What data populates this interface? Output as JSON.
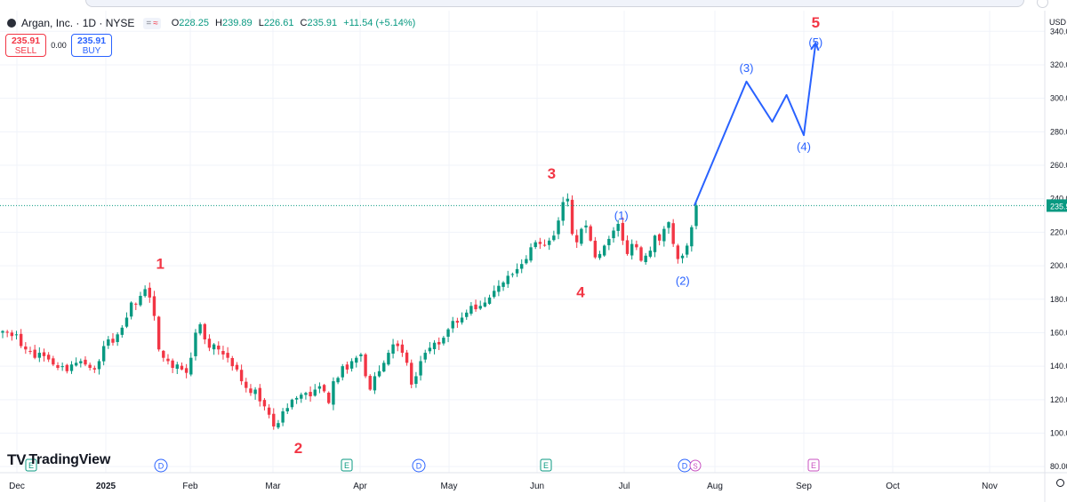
{
  "header": {
    "title": "Argan, Inc. · 1D · NYSE",
    "ohlc": [
      {
        "k": "O",
        "v": "228.25"
      },
      {
        "k": "H",
        "v": "239.89"
      },
      {
        "k": "L",
        "v": "226.61"
      },
      {
        "k": "C",
        "v": "235.91"
      },
      {
        "k": "",
        "v": "+11.54 (+5.14%)"
      }
    ],
    "toggle_icons": [
      "equals-icon",
      "wave-icon"
    ]
  },
  "trade": {
    "sell_price": "235.91",
    "sell_label": "SELL",
    "spread": "0.00",
    "buy_price": "235.91",
    "buy_label": "BUY"
  },
  "brand": "TradingView",
  "price_axis": {
    "unit": "USD",
    "ticks": [
      "340.00",
      "320.00",
      "300.00",
      "280.00",
      "260.00",
      "240.00",
      "220.00",
      "200.00",
      "180.00",
      "160.00",
      "140.00",
      "120.00",
      "100.00",
      "80.00"
    ],
    "last_price_label": "235.91"
  },
  "colors": {
    "up": "#089981",
    "down": "#f23645",
    "projection": "#2962ff",
    "wave_major": "#f23645",
    "last_line": "#089981"
  },
  "chart_data": {
    "type": "candlestick",
    "symbol": "Argan, Inc.",
    "interval": "1D",
    "exchange": "NYSE",
    "x_labels": [
      "Dec",
      "2025",
      "Feb",
      "Mar",
      "Apr",
      "May",
      "Jun",
      "Jul",
      "Aug",
      "Sep",
      "Oct",
      "Nov"
    ],
    "ylim": [
      75,
      345
    ],
    "y_ticks": [
      80,
      100,
      120,
      140,
      160,
      180,
      200,
      220,
      240,
      260,
      280,
      300,
      320,
      340
    ],
    "last_price": 235.91,
    "closes": [
      161,
      160,
      158,
      159,
      152,
      150,
      149,
      145,
      148,
      146,
      144,
      141,
      139,
      140,
      137,
      141,
      142,
      143,
      141,
      139,
      138,
      143,
      152,
      156,
      154,
      159,
      163,
      169,
      178,
      177,
      182,
      186,
      181,
      170,
      150,
      145,
      143,
      139,
      141,
      138,
      136,
      145,
      160,
      165,
      156,
      151,
      153,
      150,
      147,
      145,
      140,
      138,
      131,
      127,
      124,
      126,
      119,
      116,
      111,
      104,
      106,
      113,
      115,
      120,
      121,
      123,
      124,
      122,
      126,
      128,
      125,
      118,
      131,
      133,
      140,
      138,
      143,
      145,
      147,
      134,
      126,
      134,
      137,
      142,
      148,
      153,
      152,
      148,
      142,
      129,
      134,
      143,
      148,
      151,
      154,
      153,
      157,
      162,
      167,
      166,
      169,
      172,
      176,
      174,
      176,
      178,
      181,
      185,
      188,
      190,
      194,
      195,
      198,
      201,
      204,
      211,
      214,
      213,
      212,
      215,
      218,
      227,
      238,
      240,
      219,
      214,
      222,
      224,
      215,
      205,
      207,
      212,
      216,
      221,
      225,
      215,
      207,
      213,
      211,
      203,
      206,
      209,
      218,
      215,
      222,
      226,
      213,
      204,
      206,
      212,
      223,
      236
    ],
    "waves_major": [
      {
        "label": "1",
        "date": "2025-01-21",
        "price": 191
      },
      {
        "label": "2",
        "date": "2025-03-10",
        "price": 100
      },
      {
        "label": "3",
        "date": "2025-06-06",
        "price": 246
      },
      {
        "label": "4",
        "date": "2025-06-16",
        "price": 193
      },
      {
        "label": "5",
        "date": "2025-09-05",
        "price": 335
      }
    ],
    "waves_minor": [
      {
        "label": "(1)",
        "date": "2025-06-30",
        "price": 222
      },
      {
        "label": "(2)",
        "date": "2025-07-21",
        "price": 198
      },
      {
        "label": "(3)",
        "date": "2025-08-12",
        "price": 310
      },
      {
        "label": "(4)",
        "date": "2025-09-01",
        "price": 278
      },
      {
        "label": "(5)",
        "date": "2025-09-05",
        "price": 333
      }
    ],
    "projection_path": [
      {
        "date": "2025-07-25",
        "price": 236
      },
      {
        "date": "2025-08-12",
        "price": 310
      },
      {
        "date": "2025-08-21",
        "price": 286
      },
      {
        "date": "2025-08-26",
        "price": 302
      },
      {
        "date": "2025-09-01",
        "price": 278
      },
      {
        "date": "2025-09-05",
        "price": 333
      }
    ],
    "events": [
      {
        "type": "E",
        "month": "Dec"
      },
      {
        "type": "D",
        "month": "Jan"
      },
      {
        "type": "E",
        "month": "Mar"
      },
      {
        "type": "D",
        "month": "Apr"
      },
      {
        "type": "E",
        "month": "Jun"
      },
      {
        "type": "D",
        "month": "Jul"
      },
      {
        "type": "S",
        "month": "Jul"
      },
      {
        "type": "E",
        "month": "Sep"
      }
    ]
  }
}
